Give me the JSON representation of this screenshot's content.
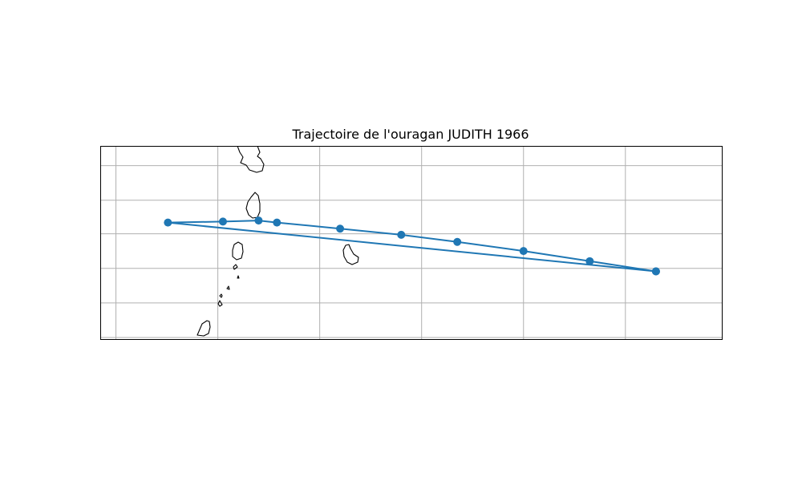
{
  "figure": {
    "title": "Trajectoire de l'ouragan JUDITH 1966"
  },
  "colors": {
    "track": "#1f77b4",
    "grid": "#b0b0b0",
    "coastline": "#000000"
  },
  "chart_data": {
    "type": "line",
    "title": "Trajectoire de l'ouragan JUDITH 1966",
    "xlabel": "",
    "ylabel": "",
    "grid": true,
    "xlim": [
      -64.15,
      -58.05
    ],
    "ylim": [
      12.0,
      13.9
    ],
    "gridlines_lon": [
      -64.0,
      -63.0,
      -62.0,
      -61.0,
      -60.0,
      -59.0
    ],
    "gridlines_lat": [
      12.02,
      12.36,
      12.7,
      13.04,
      13.37,
      13.71
    ],
    "series": [
      {
        "name": "JUDITH 1966",
        "marker": "circle",
        "lon": [
          -58.7,
          -59.35,
          -60.0,
          -60.65,
          -61.2,
          -61.8,
          -62.42,
          -62.6,
          -62.95,
          -63.49,
          -58.7
        ],
        "lat": [
          12.67,
          12.77,
          12.87,
          12.96,
          13.03,
          13.09,
          13.15,
          13.17,
          13.16,
          13.15,
          12.67
        ]
      }
    ]
  }
}
